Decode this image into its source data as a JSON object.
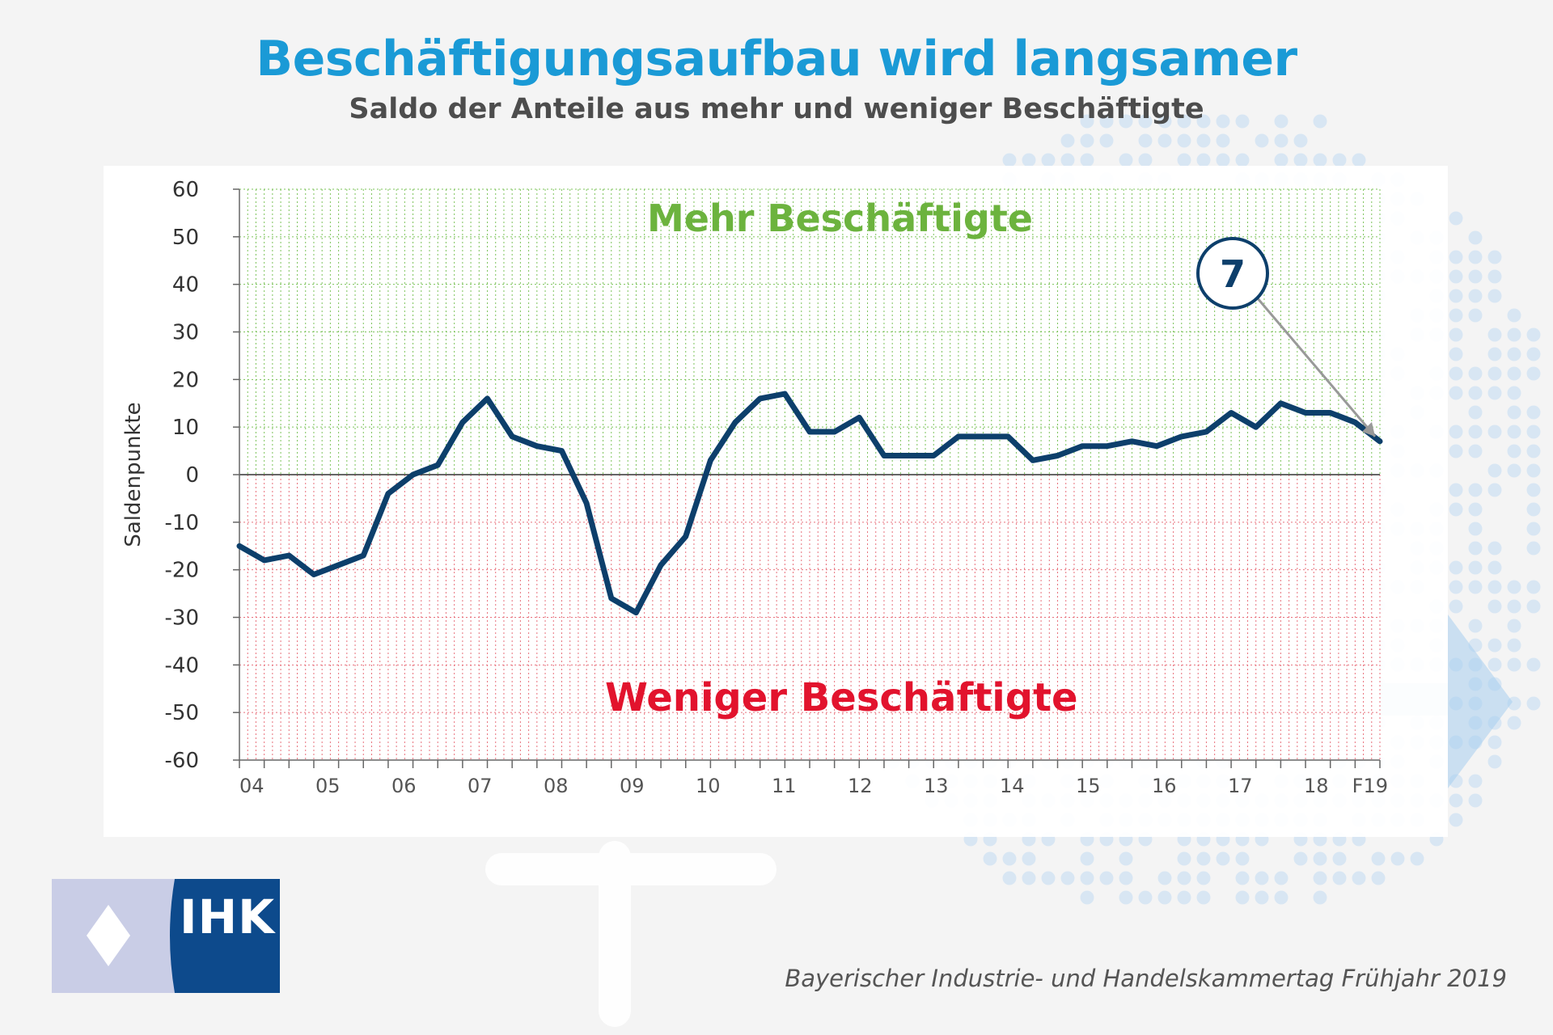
{
  "header": {
    "title": "Beschäftigungsaufbau wird langsamer",
    "subtitle": "Saldo der Anteile aus mehr und weniger Beschäftigte"
  },
  "annotations": {
    "positive_zone": "Mehr Beschäftigte",
    "negative_zone": "Weniger Beschäftigte",
    "callout_value": "7"
  },
  "footer": {
    "logo_text": "IHK",
    "source": "Bayerischer Industrie- und Handelskammertag Frühjahr 2019"
  },
  "colors": {
    "title": "#1a9ad6",
    "line": "#0d3f6b",
    "positive": "#6cb33e",
    "negative": "#e2132d",
    "logo_blue": "#0d4a8c",
    "logo_light": "#c9cde6"
  },
  "chart_data": {
    "type": "line",
    "ylabel": "Saldenpunkte",
    "xlabel": "",
    "ylim": [
      -60,
      60
    ],
    "yticks": [
      60,
      50,
      40,
      30,
      20,
      10,
      0,
      -10,
      -20,
      -30,
      -40,
      -50,
      -60
    ],
    "xtick_labels": [
      "04",
      "05",
      "06",
      "07",
      "08",
      "09",
      "10",
      "11",
      "12",
      "13",
      "14",
      "15",
      "16",
      "17",
      "18",
      "F19"
    ],
    "grid": true,
    "series": [
      {
        "values": [
          -15,
          -18,
          -17,
          -21,
          -19,
          -17,
          -4,
          0,
          2,
          11,
          16,
          8,
          6,
          5,
          -6,
          -26,
          -29,
          -19,
          -13,
          3,
          11,
          16,
          17,
          9,
          9,
          12,
          4,
          4,
          4,
          8,
          8,
          8,
          3,
          4,
          6,
          6,
          7,
          6,
          8,
          9,
          13,
          10,
          15,
          13,
          13,
          11,
          7
        ]
      }
    ],
    "callout": {
      "value": 7,
      "target_index": 46
    }
  }
}
